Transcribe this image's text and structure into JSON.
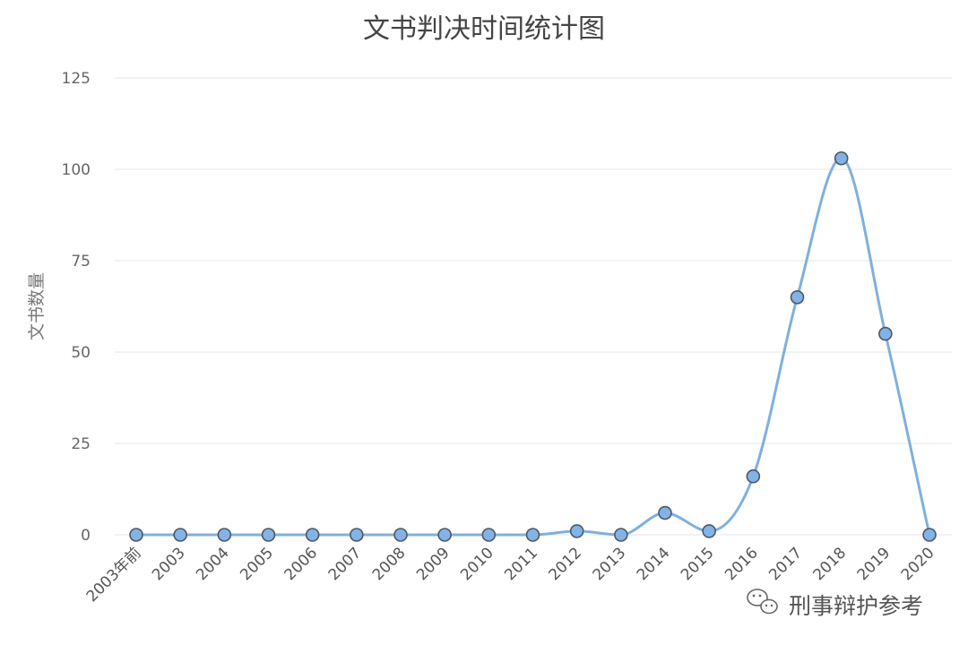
{
  "chart_data": {
    "type": "line",
    "title": "文书判决时间统计图",
    "xlabel": "",
    "ylabel": "文书数量",
    "categories": [
      "2003年前",
      "2003",
      "2004",
      "2005",
      "2006",
      "2007",
      "2008",
      "2009",
      "2010",
      "2011",
      "2012",
      "2013",
      "2014",
      "2015",
      "2016",
      "2017",
      "2018",
      "2019",
      "2020"
    ],
    "series": [
      {
        "values": [
          0,
          0,
          0,
          0,
          0,
          0,
          0,
          0,
          0,
          0,
          1,
          0,
          6,
          1,
          16,
          65,
          103,
          55,
          0
        ]
      }
    ],
    "ylim": [
      0,
      125
    ],
    "yticks": [
      "0",
      "25",
      "50",
      "75",
      "100",
      "125"
    ],
    "grid": true,
    "smooth": true,
    "line_color": "#7fb0dc",
    "marker_color": "#82b3e6"
  },
  "watermark": {
    "text": "刑事辩护参考",
    "icon": "wechat-icon"
  }
}
